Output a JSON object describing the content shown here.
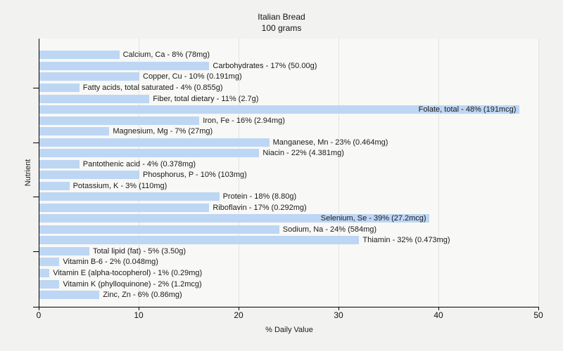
{
  "title": {
    "line1": "Italian Bread",
    "line2": "100 grams"
  },
  "colors": {
    "bar": "#bdd6f4",
    "figure_background": "#f2f2f0",
    "plot_background": "#f8f8f6",
    "gridline": "#e3e3e0",
    "axis": "#000000",
    "text": "#1a1a1a"
  },
  "chart_data": {
    "type": "bar",
    "orientation": "horizontal",
    "title": "Italian Bread",
    "subtitle": "100 grams",
    "xlabel": "% Daily Value",
    "ylabel": "Nutrient",
    "xlim": [
      0,
      50
    ],
    "x_ticks": [
      0,
      10,
      20,
      30,
      40,
      50
    ],
    "grid": "vertical",
    "legend": "none",
    "bars": [
      {
        "nutrient": "Calcium, Ca",
        "percent": 8,
        "amount": "78mg",
        "label": "Calcium, Ca - 8% (78mg)"
      },
      {
        "nutrient": "Carbohydrates",
        "percent": 17,
        "amount": "50.00g",
        "label": "Carbohydrates - 17% (50.00g)"
      },
      {
        "nutrient": "Copper, Cu",
        "percent": 10,
        "amount": "0.191mg",
        "label": "Copper, Cu - 10% (0.191mg)"
      },
      {
        "nutrient": "Fatty acids, total saturated",
        "percent": 4,
        "amount": "0.855g",
        "label": "Fatty acids, total saturated - 4% (0.855g)"
      },
      {
        "nutrient": "Fiber, total dietary",
        "percent": 11,
        "amount": "2.7g",
        "label": "Fiber, total dietary - 11% (2.7g)"
      },
      {
        "nutrient": "Folate, total",
        "percent": 48,
        "amount": "191mcg",
        "label": "Folate, total - 48% (191mcg)"
      },
      {
        "nutrient": "Iron, Fe",
        "percent": 16,
        "amount": "2.94mg",
        "label": "Iron, Fe - 16% (2.94mg)"
      },
      {
        "nutrient": "Magnesium, Mg",
        "percent": 7,
        "amount": "27mg",
        "label": "Magnesium, Mg - 7% (27mg)"
      },
      {
        "nutrient": "Manganese, Mn",
        "percent": 23,
        "amount": "0.464mg",
        "label": "Manganese, Mn - 23% (0.464mg)"
      },
      {
        "nutrient": "Niacin",
        "percent": 22,
        "amount": "4.381mg",
        "label": "Niacin - 22% (4.381mg)"
      },
      {
        "nutrient": "Pantothenic acid",
        "percent": 4,
        "amount": "0.378mg",
        "label": "Pantothenic acid - 4% (0.378mg)"
      },
      {
        "nutrient": "Phosphorus, P",
        "percent": 10,
        "amount": "103mg",
        "label": "Phosphorus, P - 10% (103mg)"
      },
      {
        "nutrient": "Potassium, K",
        "percent": 3,
        "amount": "110mg",
        "label": "Potassium, K - 3% (110mg)"
      },
      {
        "nutrient": "Protein",
        "percent": 18,
        "amount": "8.80g",
        "label": "Protein - 18% (8.80g)"
      },
      {
        "nutrient": "Riboflavin",
        "percent": 17,
        "amount": "0.292mg",
        "label": "Riboflavin - 17% (0.292mg)"
      },
      {
        "nutrient": "Selenium, Se",
        "percent": 39,
        "amount": "27.2mcg",
        "label": "Selenium, Se - 39% (27.2mcg)"
      },
      {
        "nutrient": "Sodium, Na",
        "percent": 24,
        "amount": "584mg",
        "label": "Sodium, Na - 24% (584mg)"
      },
      {
        "nutrient": "Thiamin",
        "percent": 32,
        "amount": "0.473mg",
        "label": "Thiamin - 32% (0.473mg)"
      },
      {
        "nutrient": "Total lipid (fat)",
        "percent": 5,
        "amount": "3.50g",
        "label": "Total lipid (fat) - 5% (3.50g)"
      },
      {
        "nutrient": "Vitamin B-6",
        "percent": 2,
        "amount": "0.048mg",
        "label": "Vitamin B-6 - 2% (0.048mg)"
      },
      {
        "nutrient": "Vitamin E (alpha-tocopherol)",
        "percent": 1,
        "amount": "0.29mg",
        "label": "Vitamin E (alpha-tocopherol) - 1% (0.29mg)"
      },
      {
        "nutrient": "Vitamin K (phylloquinone)",
        "percent": 2,
        "amount": "1.2mcg",
        "label": "Vitamin K (phylloquinone) - 2% (1.2mcg)"
      },
      {
        "nutrient": "Zinc, Zn",
        "percent": 6,
        "amount": "0.86mg",
        "label": "Zinc, Zn - 6% (0.86mg)"
      }
    ]
  }
}
